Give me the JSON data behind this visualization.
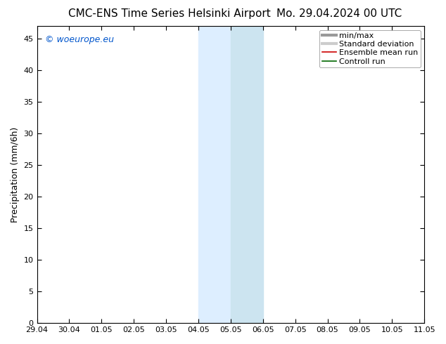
{
  "title_left": "CMC-ENS Time Series Helsinki Airport",
  "title_right": "Mo. 29.04.2024 00 UTC",
  "ylabel": "Precipitation (mm/6h)",
  "ylim": [
    0,
    47
  ],
  "yticks": [
    0,
    5,
    10,
    15,
    20,
    25,
    30,
    35,
    40,
    45
  ],
  "xtick_labels": [
    "29.04",
    "30.04",
    "01.05",
    "02.05",
    "03.05",
    "04.05",
    "05.05",
    "06.05",
    "07.05",
    "08.05",
    "09.05",
    "10.05",
    "11.05"
  ],
  "xtick_values": [
    0,
    1,
    2,
    3,
    4,
    5,
    6,
    7,
    8,
    9,
    10,
    11,
    12
  ],
  "shade_region_1_start": 5.0,
  "shade_region_1_end": 5.5,
  "shade_region_2_start": 5.5,
  "shade_region_2_end": 7.0,
  "shade_color_1": "#ddeeff",
  "shade_color_2": "#cce8f8",
  "watermark_text": "© woeurope.eu",
  "watermark_color": "#0055cc",
  "legend_labels": [
    "min/max",
    "Standard deviation",
    "Ensemble mean run",
    "Controll run"
  ],
  "legend_line_colors": [
    "#999999",
    "#cccccc",
    "#cc0000",
    "#006600"
  ],
  "background_color": "#ffffff",
  "plot_bg_color": "#ffffff",
  "title_fontsize": 11,
  "axis_label_fontsize": 9,
  "tick_fontsize": 8,
  "legend_fontsize": 8,
  "watermark_fontsize": 9
}
